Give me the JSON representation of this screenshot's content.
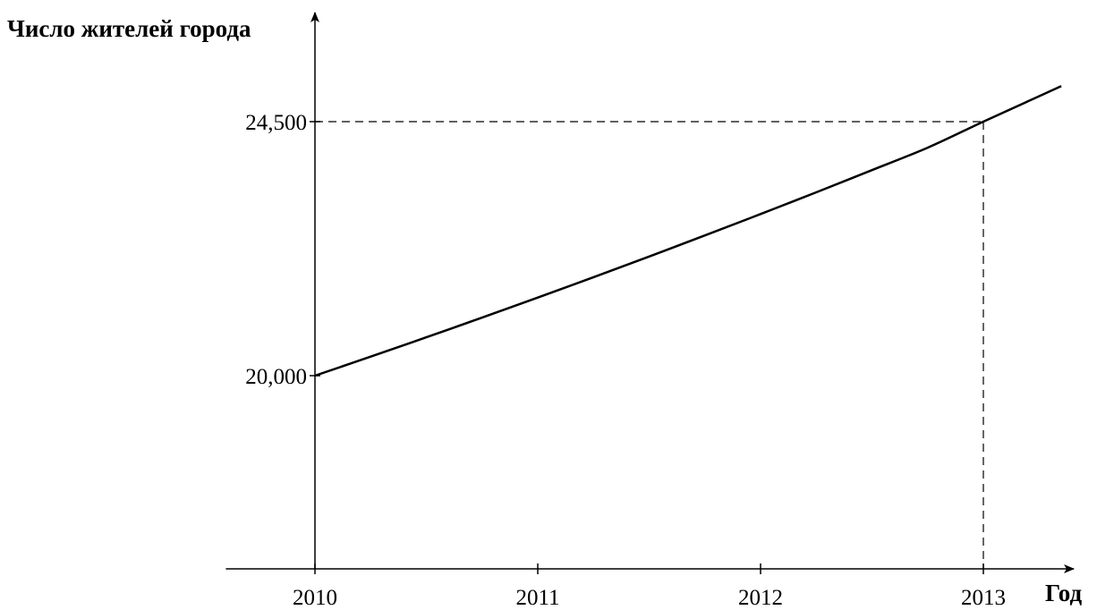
{
  "chart_data": {
    "type": "line",
    "title": "",
    "ylabel": "Число жителей города",
    "xlabel": "Год",
    "x_ticks": [
      2010,
      2011,
      2012,
      2013
    ],
    "y_ticks": [
      {
        "value": 20000,
        "label": "20,000"
      },
      {
        "value": 24500,
        "label": "24,500"
      }
    ],
    "xlim": [
      2009.6,
      2013.35
    ],
    "ylim": [
      16600,
      26500
    ],
    "grid": false,
    "series": [
      {
        "x": [
          2010,
          2010.25,
          2010.5,
          2010.75,
          2011,
          2011.25,
          2011.5,
          2011.75,
          2012,
          2012.25,
          2012.5,
          2012.75,
          2013,
          2013.2,
          2013.35
        ],
        "y": [
          20000,
          20337,
          20680,
          21029,
          21384,
          21744,
          22111,
          22484,
          22863,
          23249,
          23641,
          24039,
          24500,
          24860,
          25130
        ]
      }
    ],
    "guides": [
      {
        "x": 2013,
        "y": 24500,
        "style": "dashed"
      }
    ]
  }
}
